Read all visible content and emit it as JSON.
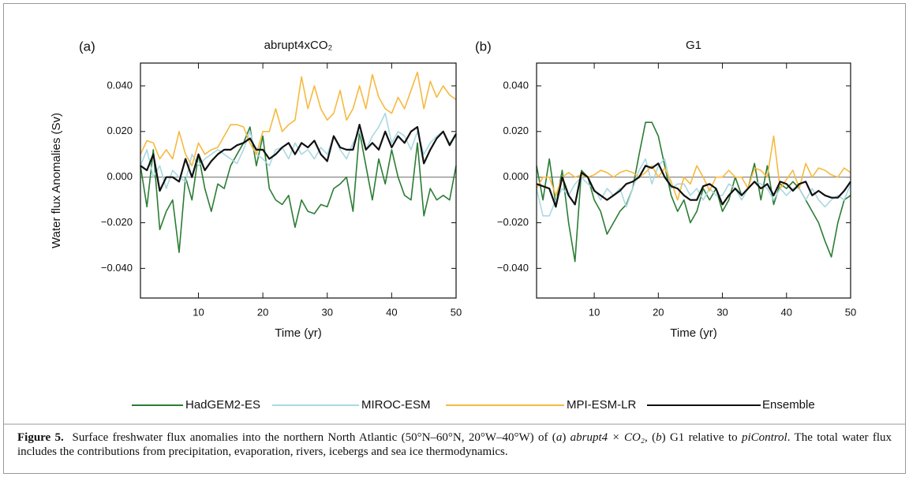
{
  "chart_data": [
    {
      "type": "line",
      "panel_label": "(a)",
      "title": "abrupt4xCO₂",
      "ylabel": "Water flux Anomalies (Sv)",
      "xlabel": "Time (yr)",
      "x": [
        1,
        2,
        3,
        4,
        5,
        6,
        7,
        8,
        9,
        10,
        11,
        12,
        13,
        14,
        15,
        16,
        17,
        18,
        19,
        20,
        21,
        22,
        23,
        24,
        25,
        26,
        27,
        28,
        29,
        30,
        31,
        32,
        33,
        34,
        35,
        36,
        37,
        38,
        39,
        40,
        41,
        42,
        43,
        44,
        45,
        46,
        47,
        48,
        49,
        50
      ],
      "xlim": [
        1,
        50
      ],
      "xticks": [
        10,
        20,
        30,
        40,
        50
      ],
      "ylim": [
        -0.053,
        0.05
      ],
      "yticks": [
        {
          "value": -0.04,
          "label": "−0.040"
        },
        {
          "value": -0.02,
          "label": "−0.020"
        },
        {
          "value": 0,
          "label": "0.000"
        },
        {
          "value": 0.02,
          "label": "0.020"
        },
        {
          "value": 0.04,
          "label": "0.040"
        }
      ],
      "series": [
        {
          "name": "HadGEM2-ES",
          "color": "#2b7d34",
          "values": [
            0.005,
            -0.013,
            0.012,
            -0.023,
            -0.015,
            -0.01,
            -0.033,
            0.0,
            -0.01,
            0.01,
            -0.005,
            -0.015,
            -0.003,
            -0.005,
            0.005,
            0.01,
            0.015,
            0.022,
            0.005,
            0.018,
            -0.005,
            -0.01,
            -0.012,
            -0.008,
            -0.022,
            -0.01,
            -0.015,
            -0.016,
            -0.012,
            -0.013,
            -0.005,
            -0.003,
            0.0,
            -0.015,
            0.02,
            0.005,
            -0.01,
            0.008,
            -0.003,
            0.012,
            0.0,
            -0.008,
            -0.01,
            0.015,
            -0.017,
            -0.005,
            -0.01,
            -0.008,
            -0.01,
            0.005
          ]
        },
        {
          "name": "MIROC-ESM",
          "color": "#aad8e2",
          "values": [
            0.005,
            0.012,
            0.0,
            0.005,
            -0.005,
            0.003,
            0.0,
            -0.002,
            0.01,
            0.005,
            0.008,
            0.01,
            0.012,
            0.01,
            0.008,
            0.006,
            0.012,
            0.02,
            0.01,
            0.008,
            0.005,
            0.012,
            0.013,
            0.008,
            0.015,
            0.01,
            0.012,
            0.008,
            0.013,
            0.01,
            0.018,
            0.012,
            0.008,
            0.015,
            0.02,
            0.012,
            0.018,
            0.022,
            0.028,
            0.015,
            0.02,
            0.018,
            0.012,
            0.02,
            0.01,
            0.015,
            0.018,
            0.02,
            0.015,
            0.018
          ]
        },
        {
          "name": "MPI-ESM-LR",
          "color": "#f6b940",
          "values": [
            0.01,
            0.016,
            0.015,
            0.008,
            0.012,
            0.008,
            0.02,
            0.01,
            0.005,
            0.015,
            0.01,
            0.012,
            0.013,
            0.018,
            0.023,
            0.023,
            0.022,
            0.015,
            0.01,
            0.02,
            0.02,
            0.03,
            0.02,
            0.023,
            0.025,
            0.044,
            0.03,
            0.04,
            0.03,
            0.025,
            0.028,
            0.038,
            0.025,
            0.03,
            0.04,
            0.03,
            0.045,
            0.035,
            0.03,
            0.028,
            0.035,
            0.03,
            0.038,
            0.046,
            0.03,
            0.042,
            0.035,
            0.04,
            0.036,
            0.034
          ]
        },
        {
          "name": "Ensemble",
          "color": "#111111",
          "values": [
            0.005,
            0.003,
            0.01,
            -0.006,
            0.0,
            0.0,
            -0.002,
            0.008,
            0.0,
            0.01,
            0.003,
            0.007,
            0.01,
            0.012,
            0.012,
            0.014,
            0.015,
            0.017,
            0.012,
            0.012,
            0.008,
            0.01,
            0.013,
            0.015,
            0.01,
            0.015,
            0.013,
            0.016,
            0.01,
            0.007,
            0.018,
            0.013,
            0.012,
            0.012,
            0.023,
            0.012,
            0.015,
            0.012,
            0.02,
            0.013,
            0.018,
            0.015,
            0.02,
            0.022,
            0.006,
            0.012,
            0.017,
            0.02,
            0.014,
            0.019
          ]
        }
      ]
    },
    {
      "type": "line",
      "panel_label": "(b)",
      "title": "G1",
      "xlabel": "Time (yr)",
      "x": [
        1,
        2,
        3,
        4,
        5,
        6,
        7,
        8,
        9,
        10,
        11,
        12,
        13,
        14,
        15,
        16,
        17,
        18,
        19,
        20,
        21,
        22,
        23,
        24,
        25,
        26,
        27,
        28,
        29,
        30,
        31,
        32,
        33,
        34,
        35,
        36,
        37,
        38,
        39,
        40,
        41,
        42,
        43,
        44,
        45,
        46,
        47,
        48,
        49,
        50
      ],
      "xlim": [
        1,
        50
      ],
      "xticks": [
        10,
        20,
        30,
        40,
        50
      ],
      "ylim": [
        -0.053,
        0.05
      ],
      "yticks": [
        {
          "value": -0.04,
          "label": "−0.040"
        },
        {
          "value": -0.02,
          "label": "−0.020"
        },
        {
          "value": 0,
          "label": "0.000"
        },
        {
          "value": 0.02,
          "label": "0.020"
        },
        {
          "value": 0.04,
          "label": "0.040"
        }
      ],
      "series": [
        {
          "name": "HadGEM2-ES",
          "color": "#2b7d34",
          "values": [
            0.005,
            -0.01,
            0.008,
            -0.012,
            0.003,
            -0.02,
            -0.037,
            0.003,
            0.0,
            -0.01,
            -0.015,
            -0.025,
            -0.02,
            -0.015,
            -0.012,
            -0.005,
            0.01,
            0.024,
            0.024,
            0.018,
            0.005,
            -0.008,
            -0.015,
            -0.01,
            -0.02,
            -0.015,
            -0.005,
            -0.01,
            -0.005,
            -0.015,
            -0.01,
            0.0,
            -0.008,
            -0.005,
            0.006,
            -0.01,
            0.005,
            -0.012,
            -0.003,
            -0.005,
            -0.002,
            -0.005,
            -0.01,
            -0.015,
            -0.02,
            -0.028,
            -0.035,
            -0.02,
            -0.01,
            -0.008
          ]
        },
        {
          "name": "MIROC-ESM",
          "color": "#aad8e2",
          "values": [
            -0.005,
            -0.017,
            -0.017,
            -0.01,
            -0.005,
            -0.008,
            -0.003,
            0.0,
            -0.003,
            -0.005,
            -0.01,
            -0.005,
            -0.008,
            -0.005,
            -0.013,
            -0.005,
            0.003,
            0.008,
            -0.003,
            0.005,
            0.008,
            -0.005,
            -0.003,
            -0.003,
            -0.008,
            -0.005,
            -0.01,
            -0.005,
            -0.008,
            -0.008,
            -0.003,
            -0.005,
            -0.01,
            -0.005,
            -0.002,
            -0.003,
            -0.005,
            -0.01,
            -0.005,
            -0.008,
            -0.005,
            -0.005,
            -0.01,
            -0.005,
            -0.01,
            -0.013,
            -0.01,
            -0.008,
            -0.01,
            -0.003
          ]
        },
        {
          "name": "MPI-ESM-LR",
          "color": "#f6b940",
          "values": [
            -0.005,
            0.0,
            0.0,
            -0.008,
            0.0,
            0.002,
            0.0,
            0.001,
            0.0,
            0.001,
            0.003,
            0.002,
            0.0,
            0.002,
            0.003,
            0.002,
            0.0,
            0.002,
            0.005,
            0.0,
            0.004,
            -0.002,
            -0.01,
            0.0,
            -0.003,
            0.005,
            0.0,
            -0.006,
            0.0,
            0.0,
            0.003,
            0.0,
            0.0,
            -0.005,
            0.004,
            0.003,
            0.0,
            0.018,
            -0.005,
            -0.001,
            0.003,
            -0.005,
            0.006,
            0.0,
            0.004,
            0.003,
            0.001,
            0.0,
            0.004,
            0.002
          ]
        },
        {
          "name": "Ensemble",
          "color": "#111111",
          "values": [
            -0.003,
            -0.004,
            -0.005,
            -0.013,
            0.0,
            -0.008,
            -0.012,
            0.002,
            0.0,
            -0.006,
            -0.008,
            -0.01,
            -0.008,
            -0.006,
            -0.003,
            -0.002,
            0.0,
            0.005,
            0.004,
            0.006,
            0.0,
            -0.004,
            -0.005,
            -0.008,
            -0.01,
            -0.01,
            -0.004,
            -0.003,
            -0.005,
            -0.012,
            -0.008,
            -0.005,
            -0.008,
            -0.005,
            -0.002,
            -0.005,
            -0.003,
            -0.008,
            -0.002,
            -0.003,
            -0.006,
            -0.003,
            -0.002,
            -0.008,
            -0.006,
            -0.008,
            -0.009,
            -0.009,
            -0.006,
            -0.002
          ]
        }
      ]
    }
  ],
  "caption": {
    "label": "Figure 5.",
    "parts": [
      "Surface freshwater flux anomalies into the northern North Atlantic (50°N–60°N, 20°W–40°W) of (",
      "a",
      ") ",
      "abrupt4 × CO₂",
      ", (",
      "b",
      ") G1 relative to ",
      "piControl",
      ". The total water flux includes the contributions from precipitation, evaporation, rivers, icebergs and sea ice thermodynamics."
    ]
  }
}
